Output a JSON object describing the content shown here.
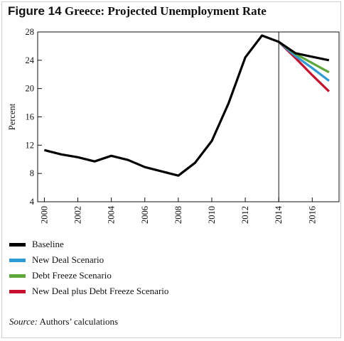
{
  "figure": {
    "number_label": "Figure 14",
    "title": "Greece: Projected Unemployment Rate"
  },
  "source": {
    "label": "Source:",
    "text": "Authors’ calculations"
  },
  "chart_data": {
    "type": "line",
    "ylabel": "Percent",
    "xlabel": "",
    "ylim": [
      4,
      28
    ],
    "xlim": [
      1999.6,
      2017.6
    ],
    "yticks": [
      4,
      8,
      12,
      16,
      20,
      24,
      28
    ],
    "xticks": [
      2000,
      2002,
      2004,
      2006,
      2008,
      2010,
      2012,
      2014,
      2016
    ],
    "vertical_marker_x": 2014,
    "grid": false,
    "legend_position": "bottom-left",
    "series": [
      {
        "name": "Baseline",
        "color": "#000000",
        "x": [
          2000,
          2001,
          2002,
          2003,
          2004,
          2005,
          2006,
          2007,
          2008,
          2009,
          2010,
          2011,
          2012,
          2013,
          2014,
          2015,
          2016,
          2017
        ],
        "y": [
          11.3,
          10.7,
          10.3,
          9.7,
          10.5,
          9.9,
          8.9,
          8.3,
          7.7,
          9.5,
          12.6,
          17.9,
          24.4,
          27.5,
          26.6,
          25.0,
          24.5,
          24.0
        ]
      },
      {
        "name": "New Deal Scenario",
        "color": "#2e9ad6",
        "x": [
          2014,
          2015,
          2016,
          2017
        ],
        "y": [
          26.6,
          24.6,
          22.9,
          21.1
        ]
      },
      {
        "name": "Debt Freeze Scenario",
        "color": "#5ea83b",
        "x": [
          2014,
          2015,
          2016,
          2017
        ],
        "y": [
          26.6,
          24.9,
          23.6,
          22.3
        ]
      },
      {
        "name": "New Deal plus Debt Freeze Scenario",
        "color": "#c8102e",
        "x": [
          2014,
          2015,
          2016,
          2017
        ],
        "y": [
          26.6,
          24.3,
          21.9,
          19.6
        ]
      }
    ]
  }
}
